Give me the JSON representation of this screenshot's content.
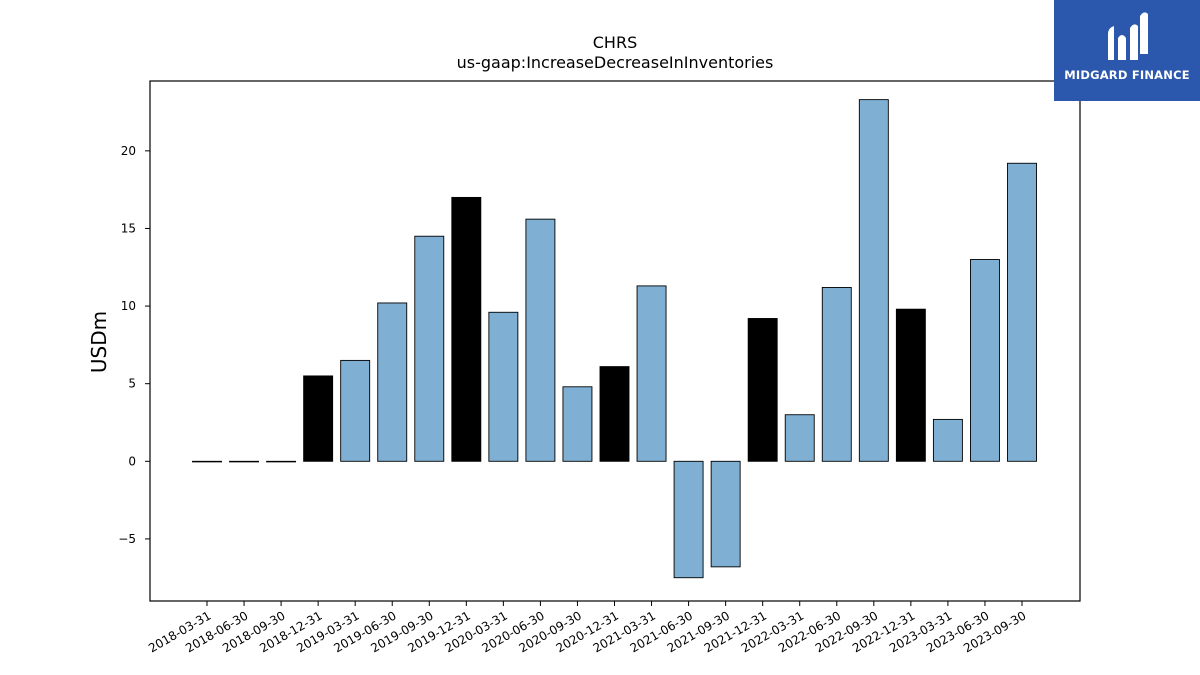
{
  "chart_data": {
    "type": "bar",
    "title": "CHRS",
    "subtitle": "us-gaap:IncreaseDecreaseInInventories",
    "xlabel": "",
    "ylabel": "USDm",
    "ylim": [
      -9,
      24.5
    ],
    "yticks": [
      -5,
      0,
      5,
      10,
      15,
      20
    ],
    "ytick_labels": [
      "−5",
      "0",
      "5",
      "10",
      "15",
      "20"
    ],
    "grid": false,
    "categories": [
      "2018-03-31",
      "2018-06-30",
      "2018-09-30",
      "2018-12-31",
      "2019-03-31",
      "2019-06-30",
      "2019-09-30",
      "2019-12-31",
      "2020-03-31",
      "2020-06-30",
      "2020-09-30",
      "2020-12-31",
      "2021-03-31",
      "2021-06-30",
      "2021-09-30",
      "2021-12-31",
      "2022-03-31",
      "2022-06-30",
      "2022-09-30",
      "2022-12-31",
      "2023-03-31",
      "2023-06-30",
      "2023-09-30"
    ],
    "values": [
      0,
      0,
      0,
      5.5,
      6.5,
      10.2,
      14.5,
      17.0,
      9.6,
      15.6,
      4.8,
      6.1,
      11.3,
      -7.5,
      -6.8,
      9.2,
      3.0,
      11.2,
      23.3,
      9.8,
      2.7,
      13.0,
      19.2
    ],
    "bar_colors": [
      "#7fb0d4",
      "#7fb0d4",
      "#7fb0d4",
      "#000000",
      "#7fb0d4",
      "#7fb0d4",
      "#7fb0d4",
      "#000000",
      "#7fb0d4",
      "#7fb0d4",
      "#7fb0d4",
      "#000000",
      "#7fb0d4",
      "#7fb0d4",
      "#7fb0d4",
      "#000000",
      "#7fb0d4",
      "#7fb0d4",
      "#7fb0d4",
      "#000000",
      "#7fb0d4",
      "#7fb0d4",
      "#7fb0d4"
    ]
  },
  "logo": {
    "text": "MIDGARD FINANCE",
    "background": "#2b57ad",
    "icon": "midgard-logo-icon"
  }
}
